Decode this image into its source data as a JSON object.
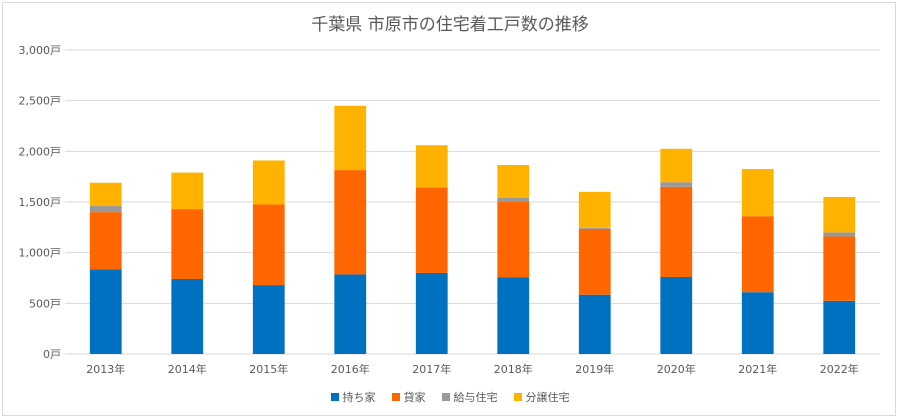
{
  "chart_data": {
    "type": "bar",
    "stacked": true,
    "title": "千葉県 市原市の住宅着工戸数の推移",
    "categories": [
      "2013年",
      "2014年",
      "2015年",
      "2016年",
      "2017年",
      "2018年",
      "2019年",
      "2020年",
      "2021年",
      "2022年"
    ],
    "series": [
      {
        "name": "持ち家",
        "color": "#0070C0",
        "values": [
          835,
          740,
          680,
          785,
          800,
          755,
          585,
          760,
          610,
          525
        ]
      },
      {
        "name": "貸家",
        "color": "#FF6600",
        "values": [
          565,
          690,
          795,
          1030,
          845,
          745,
          650,
          890,
          750,
          635
        ]
      },
      {
        "name": "給与住宅",
        "color": "#999999",
        "values": [
          60,
          0,
          0,
          0,
          0,
          40,
          10,
          45,
          0,
          40
        ]
      },
      {
        "name": "分譲住宅",
        "color": "#FFB300",
        "values": [
          230,
          360,
          435,
          635,
          415,
          325,
          355,
          330,
          465,
          350
        ]
      }
    ],
    "yticks": [
      "0戸",
      "500戸",
      "1,000戸",
      "1,500戸",
      "2,000戸",
      "2,500戸",
      "3,000戸"
    ],
    "ylim": [
      0,
      3000
    ],
    "legend_position": "bottom",
    "grid": true
  }
}
